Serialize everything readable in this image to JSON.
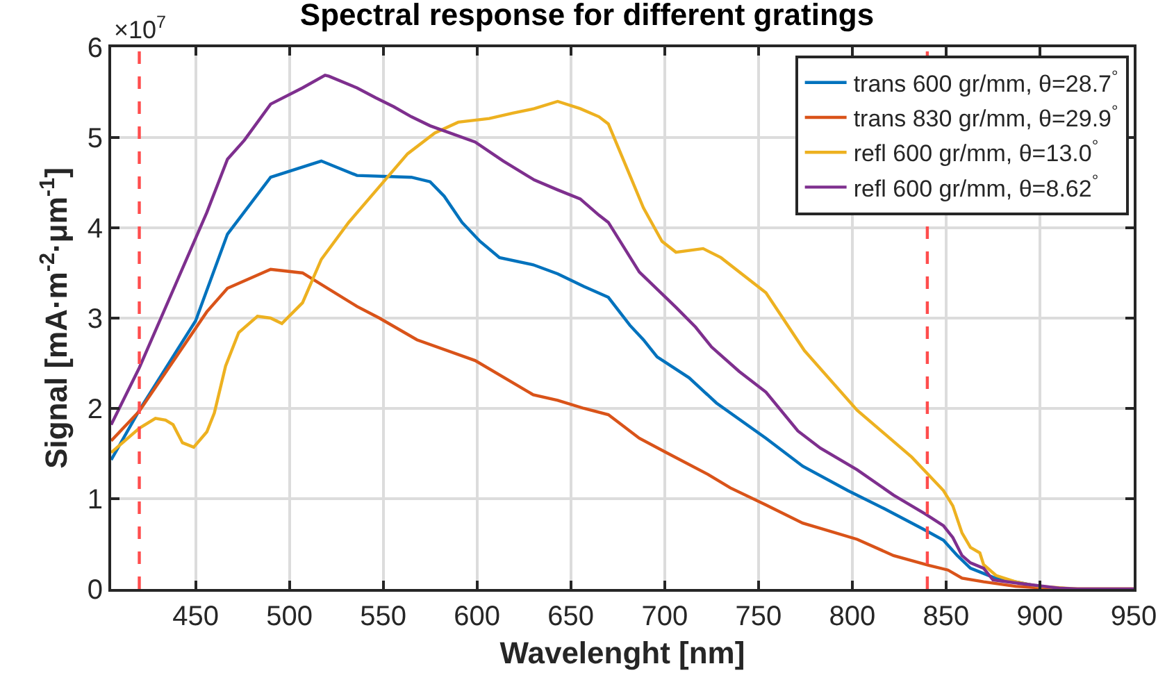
{
  "chart_data": {
    "type": "line",
    "title": "Spectral response for different gratings",
    "xlabel": "Wavelenght [nm]",
    "ylabel": "Signal [mA·m$^{-2}$·μm$^{-1}$]",
    "annotations": [
      "×10$^{7}$"
    ],
    "xlim": [
      405,
      950
    ],
    "xticks": [
      450,
      500,
      550,
      600,
      650,
      700,
      750,
      800,
      850,
      900,
      950
    ],
    "ylim": [
      0,
      6
    ],
    "yticks": [
      0,
      1,
      2,
      3,
      4,
      5,
      6
    ],
    "grid": true,
    "legend": "top right",
    "line_style": "solid",
    "ref_lines": [
      {
        "axis": "x",
        "value": 420,
        "color": "#ff4d4d",
        "line_style": "dashed"
      },
      {
        "axis": "x",
        "value": 840,
        "color": "#ff4d4d",
        "line_style": "dashed"
      }
    ],
    "series": [
      {
        "name": "trans 600 gr/mm, θ=28.7$^{°}$",
        "color": "#0072bd",
        "x": [
          405,
          420,
          450,
          467,
          490,
          517,
          536,
          565,
          575,
          582.5,
          592,
          601.6,
          612,
          630,
          643,
          657,
          670,
          681.5,
          688.7,
          696,
          713,
          727.6,
          754,
          773.6,
          797.6,
          817,
          839,
          848.6,
          856,
          863,
          875,
          899
        ],
        "values": [
          1.43,
          1.98,
          2.97,
          3.93,
          4.56,
          4.74,
          4.58,
          4.56,
          4.51,
          4.35,
          4.06,
          3.85,
          3.67,
          3.59,
          3.49,
          3.35,
          3.23,
          2.92,
          2.76,
          2.57,
          2.34,
          2.06,
          1.67,
          1.36,
          1.09,
          0.89,
          0.65,
          0.54,
          0.37,
          0.23,
          0.13,
          0.03
        ]
      },
      {
        "name": "trans 830 gr/mm, θ=29.9$^{°}$",
        "color": "#d95319",
        "x": [
          405,
          420,
          456,
          467,
          490,
          507,
          536,
          548,
          568,
          599,
          630,
          643,
          657,
          670,
          686.5,
          701,
          723,
          735,
          754,
          773.6,
          802.6,
          822,
          841,
          851,
          858.5,
          870,
          887,
          910,
          950
        ],
        "values": [
          1.64,
          1.97,
          3.07,
          3.33,
          3.54,
          3.5,
          3.13,
          3.0,
          2.76,
          2.53,
          2.15,
          2.09,
          2.0,
          1.93,
          1.67,
          1.51,
          1.27,
          1.12,
          0.93,
          0.73,
          0.55,
          0.37,
          0.26,
          0.21,
          0.12,
          0.08,
          0.03,
          0,
          0
        ]
      },
      {
        "name": "refl 600 gr/mm, θ=13.0$^{°}$",
        "color": "#edb120",
        "x": [
          405,
          420,
          428.6,
          434,
          438,
          443,
          449,
          456,
          460,
          466,
          473,
          483,
          490,
          496,
          507,
          517,
          531.6,
          551,
          563,
          577.5,
          590,
          606.5,
          619,
          630.5,
          643,
          655,
          665,
          670,
          681.5,
          688.7,
          698.6,
          706,
          720.5,
          730,
          754,
          774.5,
          802.6,
          831.7,
          848.6,
          853.6,
          858.5,
          863,
          868,
          870,
          876.6,
          887,
          899,
          920,
          950
        ],
        "values": [
          1.51,
          1.78,
          1.89,
          1.87,
          1.82,
          1.62,
          1.57,
          1.74,
          1.95,
          2.47,
          2.84,
          3.02,
          3.0,
          2.94,
          3.17,
          3.65,
          4.06,
          4.53,
          4.82,
          5.05,
          5.17,
          5.21,
          5.27,
          5.32,
          5.4,
          5.32,
          5.23,
          5.15,
          4.58,
          4.22,
          3.85,
          3.73,
          3.77,
          3.67,
          3.28,
          2.64,
          1.98,
          1.46,
          1.09,
          0.92,
          0.62,
          0.46,
          0.4,
          0.27,
          0.15,
          0.08,
          0.03,
          0,
          0
        ]
      },
      {
        "name": "refl 600 gr/mm, θ=8.62$^{°}$",
        "color": "#7e2f8e",
        "x": [
          405,
          420,
          456,
          467,
          476,
          490,
          507,
          519,
          521,
          536,
          546,
          555.7,
          565,
          575,
          599,
          614,
          630.5,
          643,
          655,
          665,
          670,
          686.5,
          706,
          716.5,
          725,
          739.7,
          754,
          771,
          783,
          802.6,
          822,
          839,
          848.6,
          853.6,
          858.5,
          863,
          870,
          875,
          890,
          910,
          920,
          950
        ],
        "values": [
          1.82,
          2.45,
          4.17,
          4.76,
          4.97,
          5.37,
          5.55,
          5.69,
          5.68,
          5.55,
          5.44,
          5.34,
          5.23,
          5.13,
          4.95,
          4.74,
          4.53,
          4.42,
          4.32,
          4.14,
          4.06,
          3.51,
          3.12,
          2.9,
          2.68,
          2.41,
          2.18,
          1.75,
          1.56,
          1.32,
          1.04,
          0.83,
          0.7,
          0.57,
          0.37,
          0.29,
          0.23,
          0.1,
          0.06,
          0.01,
          0,
          0
        ]
      }
    ]
  }
}
